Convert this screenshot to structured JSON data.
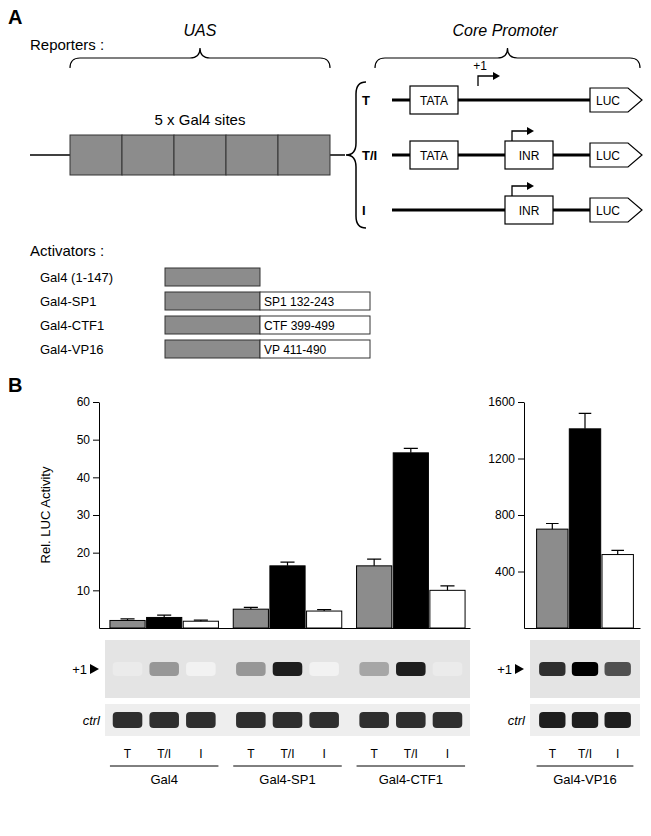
{
  "panel_labels": [
    "A",
    "B"
  ],
  "diagram": {
    "reporters_label": "Reporters :",
    "uas_label": "UAS",
    "core_label": "Core Promoter",
    "sites_label": "5 x Gal4 sites",
    "site_count": 5,
    "start_label": "+1",
    "reporters": [
      {
        "name": "T",
        "elements": [
          "TATA",
          "LUC"
        ]
      },
      {
        "name": "T/I",
        "elements": [
          "TATA",
          "INR",
          "LUC"
        ]
      },
      {
        "name": "I",
        "elements": [
          "INR",
          "LUC"
        ]
      }
    ],
    "activators_label": "Activators :",
    "activators": [
      {
        "name": "Gal4 (1-147)"
      },
      {
        "name": "Gal4-SP1",
        "fusion": "SP1 132-243"
      },
      {
        "name": "Gal4-CTF1",
        "fusion": "CTF 399-499"
      },
      {
        "name": "Gal4-VP16",
        "fusion": "VP 411-490"
      }
    ]
  },
  "chart_data": [
    {
      "type": "bar",
      "y_label": "Rel. LUC Activity",
      "categories": [
        "Gal4",
        "Gal4-SP1",
        "Gal4-CTF1"
      ],
      "series": [
        {
          "name": "T",
          "color": "#8c8c8c",
          "values": [
            2,
            5,
            16.5
          ],
          "errors": [
            0.4,
            0.5,
            1.8
          ]
        },
        {
          "name": "T/I",
          "color": "#000000",
          "values": [
            2.8,
            16.5,
            46.5
          ],
          "errors": [
            0.6,
            1.0,
            1.2
          ]
        },
        {
          "name": "I",
          "color": "#ffffff",
          "values": [
            1.8,
            4.5,
            10
          ],
          "errors": [
            0.3,
            0.4,
            1.2
          ]
        }
      ],
      "ylim": [
        0,
        60
      ],
      "yticks": [
        10,
        20,
        30,
        40,
        50,
        60
      ],
      "grid": false,
      "gel": [
        {
          "label": "+1",
          "intensity": [
            [
              0.15,
              0.5,
              0.45
            ],
            [
              0.5,
              0.9,
              0.9
            ],
            [
              0.1,
              0.1,
              0.15
            ]
          ]
        },
        {
          "label": "ctrl",
          "intensity": [
            [
              0.85,
              0.85,
              0.85
            ],
            [
              0.85,
              0.85,
              0.85
            ],
            [
              0.85,
              0.85,
              0.85
            ]
          ]
        }
      ]
    },
    {
      "type": "bar",
      "categories": [
        "Gal4-VP16"
      ],
      "series": [
        {
          "name": "T",
          "color": "#8c8c8c",
          "values": [
            700
          ],
          "errors": [
            40
          ]
        },
        {
          "name": "T/I",
          "color": "#000000",
          "values": [
            1410
          ],
          "errors": [
            110
          ]
        },
        {
          "name": "I",
          "color": "#ffffff",
          "values": [
            520
          ],
          "errors": [
            30
          ]
        }
      ],
      "ylim": [
        0,
        1600
      ],
      "yticks": [
        400,
        800,
        1200,
        1600
      ],
      "grid": false,
      "gel": [
        {
          "label": "+1",
          "intensity": [
            [
              0.85
            ],
            [
              1.0
            ],
            [
              0.75
            ]
          ]
        },
        {
          "label": "ctrl",
          "intensity": [
            [
              0.9
            ],
            [
              0.9
            ],
            [
              0.9
            ]
          ]
        }
      ]
    }
  ]
}
